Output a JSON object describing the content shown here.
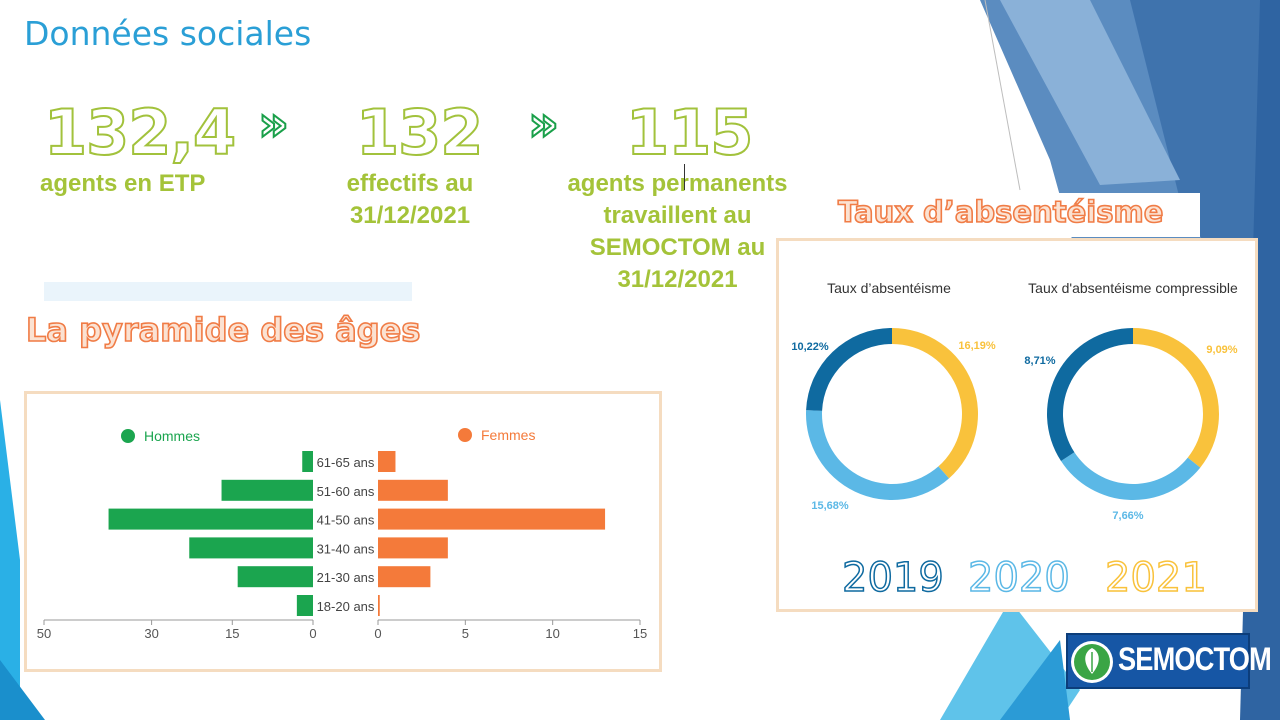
{
  "page": {
    "title": "Données sociales"
  },
  "stats": [
    {
      "value": "132,4",
      "label_lines": [
        "agents en ETP"
      ]
    },
    {
      "value": "132",
      "label_lines": [
        "effectifs au",
        "31/12/2021"
      ]
    },
    {
      "value": "115",
      "label_lines": [
        "agents permanents",
        "travaillent au",
        "SEMOCTOM au",
        "31/12/2021"
      ]
    }
  ],
  "arrows": [
    "»",
    "»"
  ],
  "pyramid": {
    "title": "La pyramide des âges",
    "legend": {
      "men": "Hommes",
      "women": "Femmes"
    },
    "colors": {
      "men": "#1ba54f",
      "women": "#f47a3a"
    },
    "chart_data": {
      "type": "bar",
      "categories": [
        "61-65 ans",
        "51-60 ans",
        "41-50 ans",
        "31-40 ans",
        "21-30 ans",
        "18-20 ans"
      ],
      "series": [
        {
          "name": "Hommes",
          "values": [
            2,
            17,
            38,
            23,
            14,
            3
          ]
        },
        {
          "name": "Femmes",
          "values": [
            1,
            4,
            13,
            4,
            3,
            0.1
          ]
        }
      ],
      "left_axis": {
        "ticks": [
          "50",
          "30",
          "15",
          "0"
        ],
        "range": [
          0,
          50
        ]
      },
      "right_axis": {
        "ticks": [
          "0",
          "5",
          "10",
          "15"
        ],
        "range": [
          0,
          15
        ]
      }
    }
  },
  "absenteeism": {
    "title": "Taux d’absentéisme",
    "colors": {
      "2019": "#0f6aa0",
      "2020": "#5bb8e6",
      "2021": "#f9c23c"
    },
    "chart_data": [
      {
        "type": "pie",
        "title": "Taux d’absentéisme",
        "categories": [
          "2019",
          "2020",
          "2021"
        ],
        "values": [
          10.22,
          15.68,
          16.19
        ],
        "labels": [
          "10,22%",
          "15,68%",
          "16,19%"
        ]
      },
      {
        "type": "pie",
        "title": "Taux d'absentéisme compressible",
        "categories": [
          "2019",
          "2020",
          "2021"
        ],
        "values": [
          8.71,
          7.66,
          9.09
        ],
        "labels": [
          "8,71%",
          "7,66%",
          "9,09%"
        ]
      }
    ],
    "years": [
      "2019",
      "2020",
      "2021"
    ]
  },
  "logo": {
    "text": "SEMOCTOM"
  }
}
